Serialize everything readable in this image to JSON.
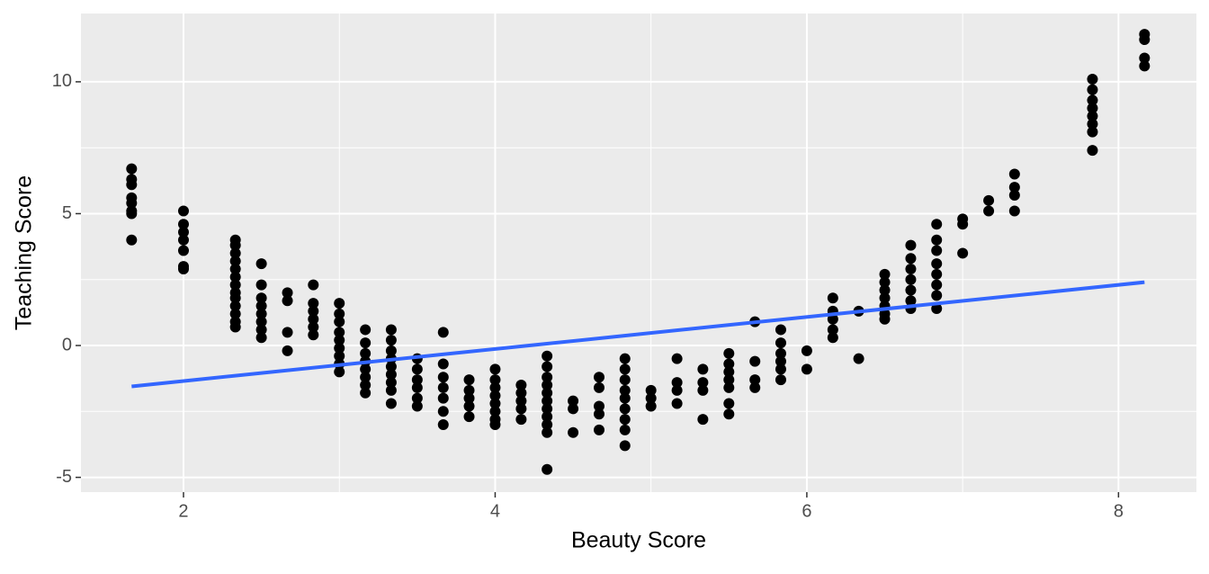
{
  "chart_data": {
    "type": "scatter",
    "x_label": "Beauty Score",
    "y_label": "Teaching Score",
    "x": [
      1.667,
      1.667,
      1.667,
      1.667,
      1.667,
      1.667,
      1.667,
      1.667,
      2,
      2,
      2,
      2,
      2,
      2,
      2,
      2.333,
      2.333,
      2.333,
      2.333,
      2.333,
      2.333,
      2.333,
      2.333,
      2.333,
      2.333,
      2.333,
      2.333,
      2.333,
      2.5,
      2.5,
      2.5,
      2.5,
      2.5,
      2.5,
      2.5,
      2.5,
      2.667,
      2.667,
      2.667,
      2.667,
      2.833,
      2.833,
      2.833,
      2.833,
      2.833,
      2.833,
      3,
      3,
      3,
      3,
      3,
      3,
      3,
      3,
      3,
      3.167,
      3.167,
      3.167,
      3.167,
      3.167,
      3.167,
      3.167,
      3.167,
      3.333,
      3.333,
      3.333,
      3.333,
      3.333,
      3.333,
      3.333,
      3.333,
      3.333,
      3.5,
      3.5,
      3.5,
      3.5,
      3.5,
      3.5,
      3.667,
      3.667,
      3.667,
      3.667,
      3.667,
      3.667,
      3.667,
      3.833,
      3.833,
      3.833,
      3.833,
      3.833,
      4,
      4,
      4,
      4,
      4,
      4,
      4,
      4,
      4.167,
      4.167,
      4.167,
      4.167,
      4.167,
      4.333,
      4.333,
      4.333,
      4.333,
      4.333,
      4.333,
      4.333,
      4.333,
      4.333,
      4.333,
      4.333,
      4.5,
      4.5,
      4.5,
      4.667,
      4.667,
      4.667,
      4.667,
      4.667,
      4.833,
      4.833,
      4.833,
      4.833,
      4.833,
      4.833,
      4.833,
      4.833,
      4.833,
      5,
      5,
      5,
      5.167,
      5.167,
      5.167,
      5.167,
      5.333,
      5.333,
      5.333,
      5.333,
      5.5,
      5.5,
      5.5,
      5.5,
      5.5,
      5.5,
      5.5,
      5.667,
      5.667,
      5.667,
      5.667,
      5.833,
      5.833,
      5.833,
      5.833,
      5.833,
      5.833,
      6,
      6,
      6.167,
      6.167,
      6.167,
      6.167,
      6.167,
      6.333,
      6.333,
      6.5,
      6.5,
      6.5,
      6.5,
      6.5,
      6.5,
      6.5,
      6.667,
      6.667,
      6.667,
      6.667,
      6.667,
      6.667,
      6.667,
      6.833,
      6.833,
      6.833,
      6.833,
      6.833,
      6.833,
      6.833,
      6.833,
      7,
      7,
      7,
      7.167,
      7.167,
      7.333,
      7.333,
      7.333,
      7.333,
      7.833,
      7.833,
      7.833,
      7.833,
      7.833,
      7.833,
      7.833,
      7.833,
      8.167,
      8.167,
      8.167,
      8.167
    ],
    "y": [
      6.7,
      6.3,
      6.1,
      5.6,
      5.4,
      5.1,
      5.0,
      4.0,
      5.1,
      4.6,
      4.3,
      4.0,
      3.6,
      3.0,
      2.9,
      4.0,
      3.8,
      3.5,
      3.2,
      2.9,
      2.6,
      2.3,
      2.0,
      1.8,
      1.5,
      1.2,
      0.9,
      0.7,
      3.1,
      2.3,
      1.8,
      1.5,
      1.2,
      0.9,
      0.6,
      0.3,
      2.0,
      1.7,
      0.5,
      -0.2,
      2.3,
      1.6,
      1.3,
      1.0,
      0.7,
      0.4,
      1.6,
      1.2,
      0.9,
      0.5,
      0.2,
      -0.1,
      -0.4,
      -0.7,
      -1.0,
      0.6,
      0.1,
      -0.3,
      -0.6,
      -0.9,
      -1.2,
      -1.5,
      -1.8,
      0.6,
      0.2,
      -0.2,
      -0.5,
      -0.8,
      -1.1,
      -1.4,
      -1.7,
      -2.2,
      -0.5,
      -0.9,
      -1.3,
      -1.6,
      -2.0,
      -2.3,
      0.5,
      -0.7,
      -1.2,
      -1.6,
      -2.0,
      -2.5,
      -3.0,
      -1.3,
      -1.7,
      -2.0,
      -2.3,
      -2.7,
      -0.9,
      -1.3,
      -1.6,
      -1.9,
      -2.2,
      -2.5,
      -2.8,
      -3.0,
      -1.5,
      -1.8,
      -2.1,
      -2.4,
      -2.8,
      -0.4,
      -0.8,
      -1.2,
      -1.5,
      -1.8,
      -2.1,
      -2.4,
      -2.7,
      -3.0,
      -3.3,
      -4.7,
      -2.1,
      -2.4,
      -3.3,
      -1.2,
      -1.6,
      -2.3,
      -2.6,
      -3.2,
      -0.5,
      -0.9,
      -1.3,
      -1.7,
      -2.0,
      -2.4,
      -2.8,
      -3.2,
      -3.8,
      -1.7,
      -2.0,
      -2.3,
      -0.5,
      -1.4,
      -1.7,
      -2.2,
      -0.9,
      -1.4,
      -1.7,
      -2.8,
      -0.3,
      -0.7,
      -1.0,
      -1.3,
      -1.6,
      -2.2,
      -2.6,
      0.9,
      -0.6,
      -1.3,
      -1.6,
      0.6,
      0.1,
      -0.3,
      -0.6,
      -0.9,
      -1.3,
      -0.2,
      -0.9,
      1.8,
      1.3,
      1.0,
      0.6,
      0.3,
      1.3,
      -0.5,
      2.7,
      2.4,
      2.1,
      1.8,
      1.5,
      1.2,
      1.0,
      3.8,
      3.3,
      2.9,
      2.5,
      2.1,
      1.7,
      1.4,
      4.6,
      4.0,
      3.6,
      3.1,
      2.7,
      2.3,
      1.9,
      1.4,
      4.8,
      4.6,
      3.5,
      5.5,
      5.1,
      6.5,
      6.0,
      5.7,
      5.1,
      10.1,
      9.7,
      9.3,
      9.0,
      8.7,
      8.4,
      8.1,
      7.4,
      11.8,
      11.6,
      10.9,
      10.6
    ],
    "point_color": "#000000",
    "fit": {
      "x": [
        1.667,
        8.167
      ],
      "values": [
        -1.55,
        2.4
      ],
      "color": "#3366ff"
    },
    "xlim": [
      1.342,
      8.5
    ],
    "ylim": [
      -5.56,
      12.59
    ],
    "xticks": [
      2,
      4,
      6,
      8
    ],
    "yticks": [
      -5,
      0,
      5,
      10
    ],
    "grid": true
  }
}
